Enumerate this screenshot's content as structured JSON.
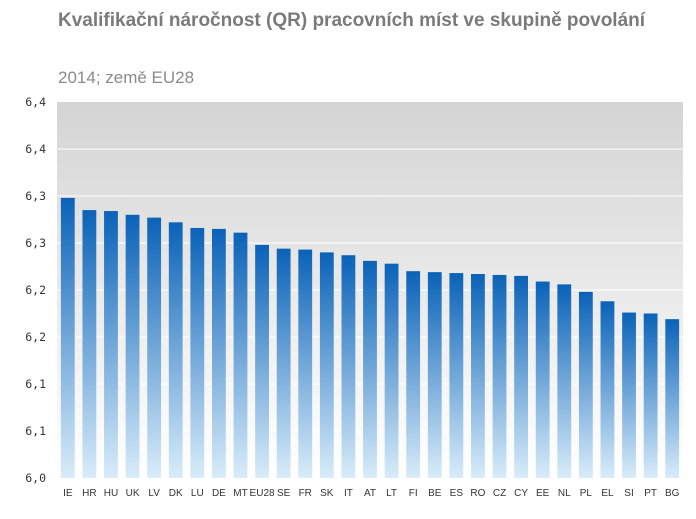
{
  "title": "Kvalifikační náročnost (QR) pracovních míst ve skupině povolání",
  "subtitle": "2014; země EU28",
  "colors": {
    "plot_bg_top": "#d4d4d4",
    "plot_bg_bottom": "#ffffff",
    "bar_top": "#0a62b8",
    "bar_bottom": "#d8ecf9",
    "grid": "#ffffff"
  },
  "chart_data": {
    "type": "bar",
    "title": "Kvalifikační náročnost (QR) pracovních míst ve skupině povolání",
    "subtitle": "2014; země EU28",
    "xlabel": "",
    "ylabel": "",
    "ylim": [
      6.0,
      6.4
    ],
    "ytick_values": [
      6.0,
      6.05,
      6.1,
      6.15,
      6.2,
      6.25,
      6.3,
      6.35,
      6.4
    ],
    "ytick_labels": [
      "6,0",
      "6,1",
      "6,1",
      "6,2",
      "6,2",
      "6,3",
      "6,3",
      "6,4",
      "6,4"
    ],
    "grid": true,
    "categories": [
      "IE",
      "HR",
      "HU",
      "UK",
      "LV",
      "DK",
      "LU",
      "DE",
      "MT",
      "EU28",
      "SE",
      "FR",
      "SK",
      "IT",
      "AT",
      "LT",
      "FI",
      "BE",
      "ES",
      "RO",
      "CZ",
      "CY",
      "EE",
      "NL",
      "PL",
      "EL",
      "SI",
      "PT",
      "BG"
    ],
    "values": [
      6.298,
      6.285,
      6.284,
      6.28,
      6.277,
      6.272,
      6.266,
      6.265,
      6.261,
      6.248,
      6.244,
      6.243,
      6.24,
      6.237,
      6.231,
      6.228,
      6.22,
      6.219,
      6.218,
      6.217,
      6.216,
      6.215,
      6.209,
      6.206,
      6.198,
      6.188,
      6.176,
      6.175,
      6.169
    ]
  }
}
